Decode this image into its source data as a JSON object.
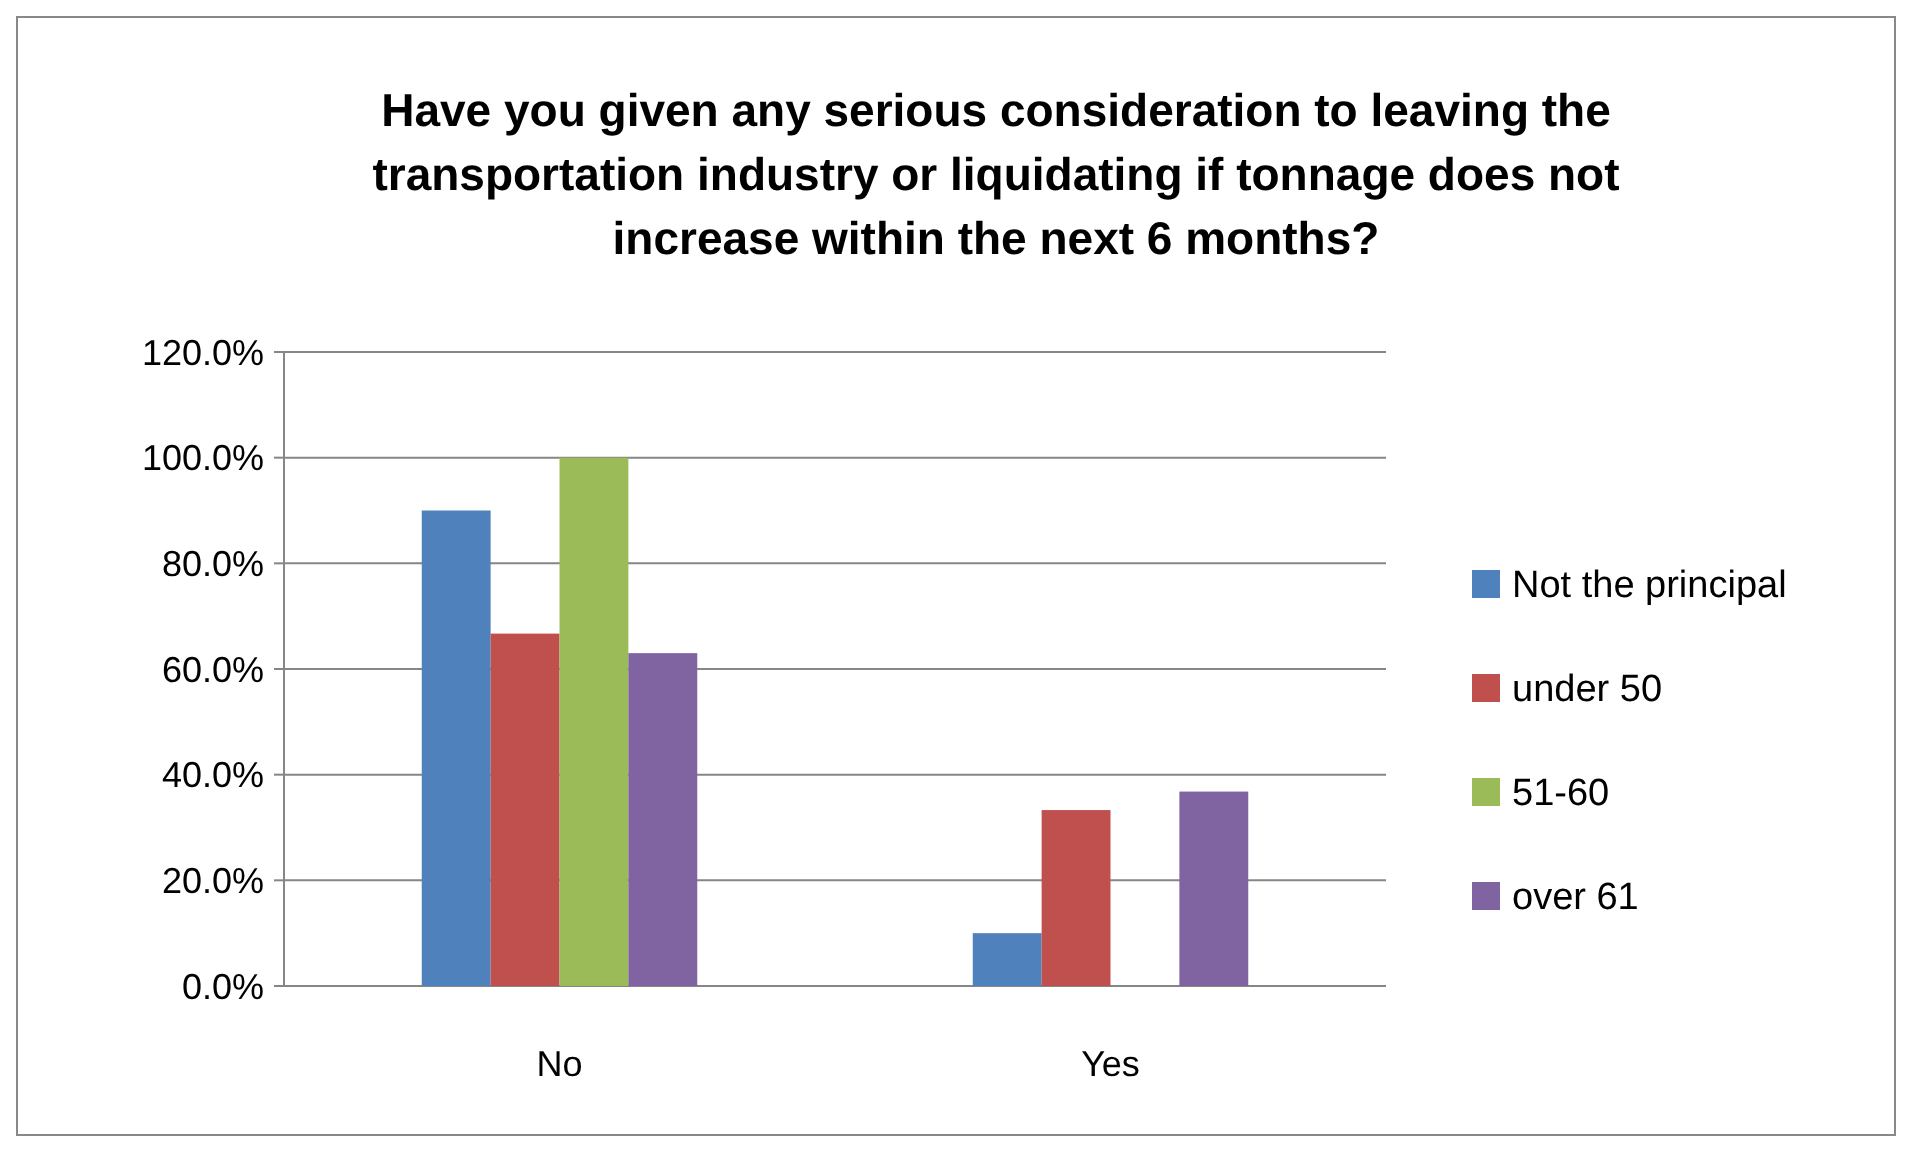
{
  "chart_data": {
    "type": "bar",
    "title": "Have you given any serious consideration to leaving the transportation industry or liquidating if tonnage does not increase within the next 6 months?",
    "categories": [
      "No",
      "Yes"
    ],
    "series": [
      {
        "name": "Not the principal",
        "color": "#4f81bd",
        "values": [
          90,
          10
        ]
      },
      {
        "name": "under 50",
        "color": "#c0504d",
        "values": [
          66.7,
          33.3
        ]
      },
      {
        "name": "51-60",
        "color": "#9bbb59",
        "values": [
          100,
          0
        ]
      },
      {
        "name": "over 61",
        "color": "#8064a2",
        "values": [
          63,
          36.8
        ]
      }
    ],
    "ylim": [
      0,
      120
    ],
    "yticks": [
      {
        "value": 0,
        "label": "0.0%"
      },
      {
        "value": 20,
        "label": "20.0%"
      },
      {
        "value": 40,
        "label": "40.0%"
      },
      {
        "value": 60,
        "label": "60.0%"
      },
      {
        "value": 80,
        "label": "80.0%"
      },
      {
        "value": 100,
        "label": "100.0%"
      },
      {
        "value": 120,
        "label": "120.0%"
      }
    ],
    "grid": "y",
    "legend": "right"
  }
}
